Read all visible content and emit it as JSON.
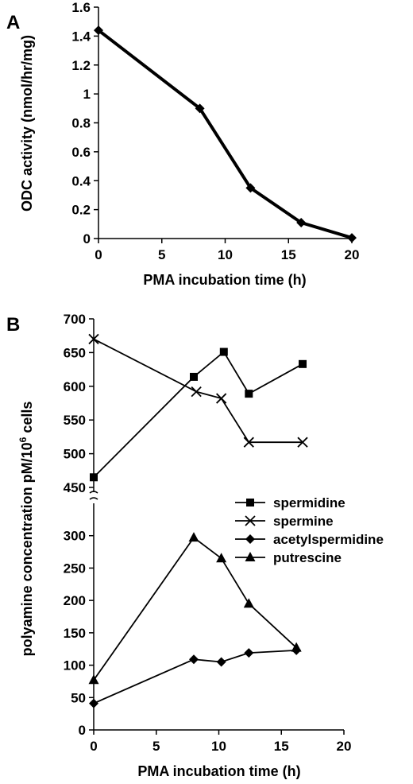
{
  "chart_data": [
    {
      "panel_label": "A",
      "type": "line",
      "xlabel": "PMA incubation time (h)",
      "ylabel": "ODC activity (nmol/hr/mg)",
      "xlim": [
        0,
        20
      ],
      "ylim": [
        0,
        1.6
      ],
      "xticks": [
        "0",
        "5",
        "10",
        "15",
        "20"
      ],
      "yticks": [
        "0",
        "0.2",
        "0.4",
        "0.6",
        "0.8",
        "1",
        "1.2",
        "1.4",
        "1.6"
      ],
      "grid": false,
      "series": [
        {
          "marker": "diamond",
          "x": [
            0,
            8,
            12,
            16,
            20
          ],
          "values": [
            1.44,
            0.9,
            0.35,
            0.11,
            0.005
          ]
        }
      ]
    },
    {
      "panel_label": "B",
      "type": "line",
      "xlabel": "PMA incubation time (h)",
      "ylabel_parts": {
        "text": "polyamine concentration pM/10",
        "sup": "6",
        "tail": " cells"
      },
      "xlim": [
        0,
        20
      ],
      "ylim_lower": [
        0,
        350
      ],
      "ylim_upper": [
        450,
        700
      ],
      "axis_break": true,
      "xticks": [
        "0",
        "5",
        "10",
        "15",
        "20"
      ],
      "yticks_lower": [
        "0",
        "50",
        "100",
        "150",
        "200",
        "250",
        "300"
      ],
      "yticks_upper": [
        "450",
        "500",
        "550",
        "600",
        "650",
        "700"
      ],
      "grid": false,
      "legend_position": "right",
      "series": [
        {
          "name": "spermidine",
          "marker": "square",
          "x": [
            0,
            8,
            10.4,
            12.4,
            16.7
          ],
          "values": [
            465,
            614,
            651,
            589,
            633
          ]
        },
        {
          "name": "spermine",
          "marker": "x",
          "x": [
            0,
            8.2,
            10.2,
            12.4,
            16.7
          ],
          "values": [
            670,
            592,
            582,
            517,
            517
          ]
        },
        {
          "name": "acetylspermidine",
          "marker": "diamond",
          "x": [
            0,
            8,
            10.2,
            12.4,
            16.2
          ],
          "values": [
            41,
            109,
            105,
            119,
            123
          ]
        },
        {
          "name": "putrescine",
          "marker": "triangle",
          "x": [
            0,
            8,
            10.2,
            12.4,
            16.2
          ],
          "values": [
            77,
            297,
            265,
            195,
            127
          ]
        }
      ]
    }
  ]
}
